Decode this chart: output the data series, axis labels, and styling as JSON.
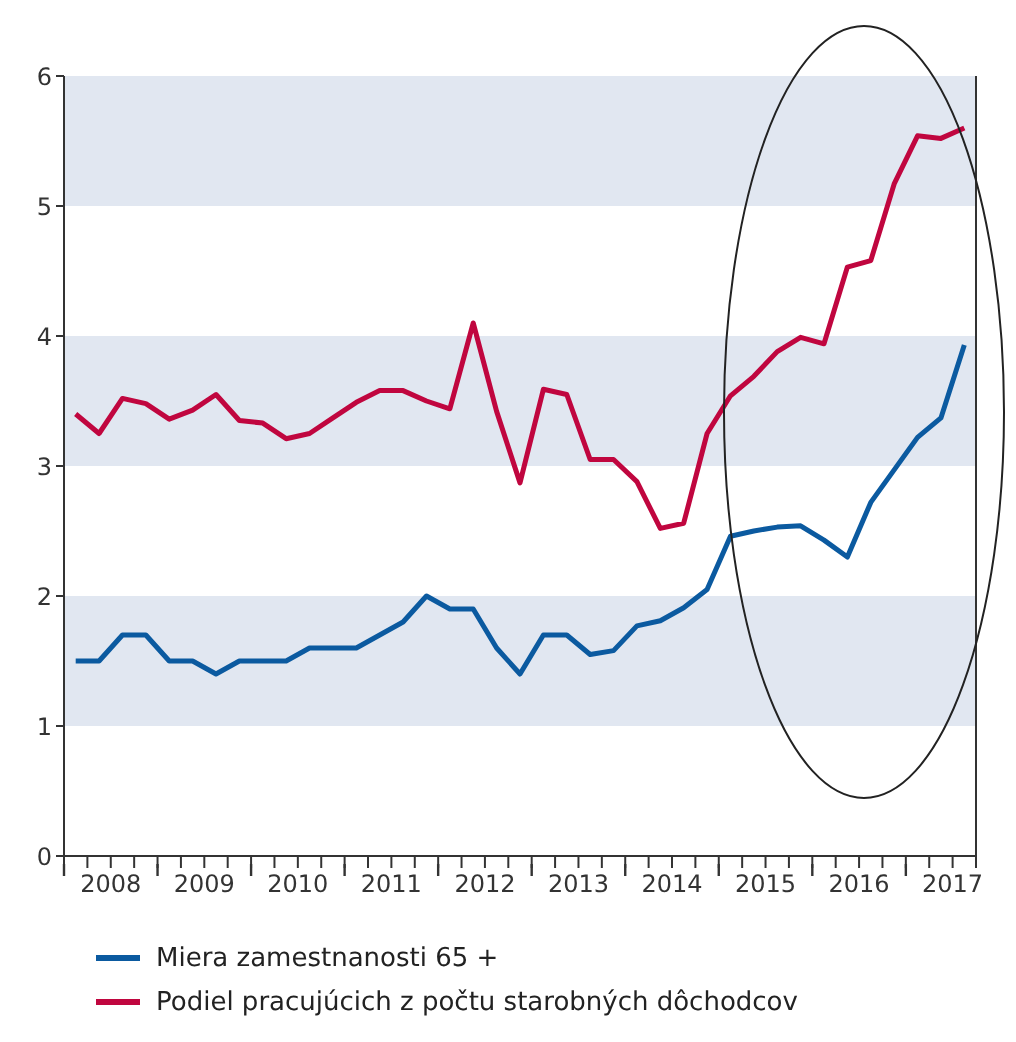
{
  "chart_data": {
    "type": "line",
    "x": [
      2008.125,
      2008.375,
      2008.625,
      2008.875,
      2009.125,
      2009.375,
      2009.625,
      2009.875,
      2010.125,
      2010.375,
      2010.625,
      2010.875,
      2011.125,
      2011.375,
      2011.625,
      2011.875,
      2012.125,
      2012.375,
      2012.625,
      2012.875,
      2013.125,
      2013.375,
      2013.625,
      2013.875,
      2014.125,
      2014.375,
      2014.625,
      2014.875,
      2015.125,
      2015.375,
      2015.625,
      2015.875,
      2016.125,
      2016.375,
      2016.625,
      2016.875,
      2017.125,
      2017.375,
      2017.625
    ],
    "series": [
      {
        "name": "Miera zamestnanosti 65 +",
        "color": "#0b5aa0",
        "values": [
          1.5,
          1.5,
          1.7,
          1.7,
          1.5,
          1.5,
          1.4,
          1.5,
          1.5,
          1.5,
          1.6,
          1.6,
          1.6,
          1.7,
          1.8,
          2.0,
          1.9,
          1.9,
          1.6,
          1.4,
          1.7,
          1.7,
          1.55,
          1.58,
          1.77,
          1.81,
          1.91,
          2.05,
          2.46,
          2.5,
          2.53,
          2.54,
          2.43,
          2.3,
          2.72,
          2.97,
          3.22,
          3.37,
          3.93
        ]
      },
      {
        "name": "Podiel pracujúcich z počtu starobných dôchodcov",
        "color": "#c0063f",
        "values": [
          3.4,
          3.25,
          3.52,
          3.48,
          3.36,
          3.43,
          3.55,
          3.35,
          3.33,
          3.21,
          3.25,
          3.37,
          3.49,
          3.58,
          3.58,
          3.5,
          3.44,
          4.1,
          3.42,
          2.87,
          3.59,
          3.55,
          3.05,
          3.05,
          2.88,
          2.52,
          2.56,
          3.25,
          3.54,
          3.69,
          3.88,
          3.99,
          3.94,
          4.53,
          4.58,
          5.17,
          5.54,
          5.52,
          5.6
        ]
      }
    ],
    "xlim": [
      2008,
      2017.75
    ],
    "xticks": [
      {
        "value": 2008,
        "label": null
      },
      {
        "value": 2008.25,
        "label": null
      },
      {
        "value": 2008.5,
        "label": "2008"
      },
      {
        "value": 2008.75,
        "label": null
      },
      {
        "value": 2009,
        "label": null
      },
      {
        "value": 2009.25,
        "label": null
      },
      {
        "value": 2009.5,
        "label": "2009"
      },
      {
        "value": 2009.75,
        "label": null
      },
      {
        "value": 2010,
        "label": null
      },
      {
        "value": 2010.25,
        "label": null
      },
      {
        "value": 2010.5,
        "label": "2010"
      },
      {
        "value": 2010.75,
        "label": null
      },
      {
        "value": 2011,
        "label": null
      },
      {
        "value": 2011.25,
        "label": null
      },
      {
        "value": 2011.5,
        "label": "2011"
      },
      {
        "value": 2011.75,
        "label": null
      },
      {
        "value": 2012,
        "label": null
      },
      {
        "value": 2012.25,
        "label": null
      },
      {
        "value": 2012.5,
        "label": "2012"
      },
      {
        "value": 2012.75,
        "label": null
      },
      {
        "value": 2013,
        "label": null
      },
      {
        "value": 2013.25,
        "label": null
      },
      {
        "value": 2013.5,
        "label": "2013"
      },
      {
        "value": 2013.75,
        "label": null
      },
      {
        "value": 2014,
        "label": null
      },
      {
        "value": 2014.25,
        "label": null
      },
      {
        "value": 2014.5,
        "label": "2014"
      },
      {
        "value": 2014.75,
        "label": null
      },
      {
        "value": 2015,
        "label": null
      },
      {
        "value": 2015.25,
        "label": null
      },
      {
        "value": 2015.5,
        "label": "2015"
      },
      {
        "value": 2015.75,
        "label": null
      },
      {
        "value": 2016,
        "label": null
      },
      {
        "value": 2016.25,
        "label": null
      },
      {
        "value": 2016.5,
        "label": "2016"
      },
      {
        "value": 2016.75,
        "label": null
      },
      {
        "value": 2017,
        "label": null
      },
      {
        "value": 2017.25,
        "label": null
      },
      {
        "value": 2017.5,
        "label": "2017"
      },
      {
        "value": 2017.75,
        "label": null
      }
    ],
    "ylim": [
      0,
      6
    ],
    "yticks": [
      0,
      1,
      2,
      3,
      4,
      5,
      6
    ],
    "bands": [
      {
        "axis": "y",
        "from": 1,
        "to": 2,
        "color": "#e1e7f1"
      },
      {
        "axis": "y",
        "from": 3,
        "to": 4,
        "color": "#e1e7f1"
      },
      {
        "axis": "y",
        "from": 5,
        "to": 6,
        "color": "#e1e7f1"
      }
    ],
    "legend": "bottom",
    "marker": "none",
    "line_style": "solid"
  }
}
